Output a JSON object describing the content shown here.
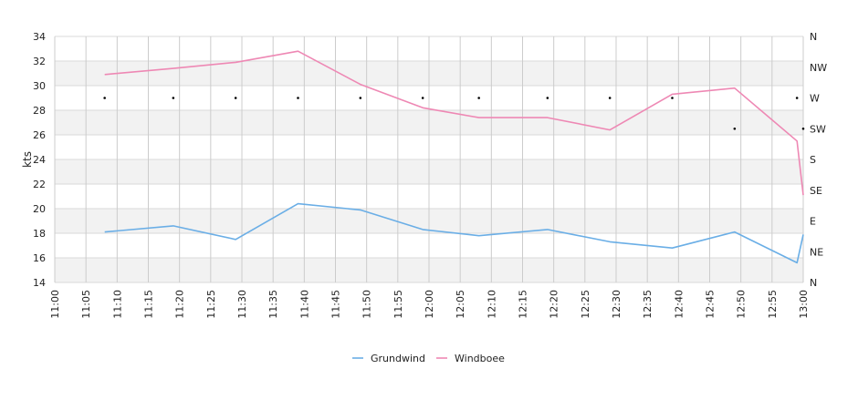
{
  "chart_data": {
    "type": "line",
    "ylabel": "kts",
    "ylim": [
      14,
      34
    ],
    "yticks": [
      "14",
      "16",
      "18",
      "20",
      "22",
      "24",
      "26",
      "28",
      "30",
      "32",
      "34"
    ],
    "x_range": [
      "11:00",
      "13:00"
    ],
    "xticks": [
      "11:00",
      "11:05",
      "11:10",
      "11:15",
      "11:20",
      "11:25",
      "11:30",
      "11:35",
      "11:40",
      "11:45",
      "11:50",
      "11:55",
      "12:00",
      "12:05",
      "12:10",
      "12:15",
      "12:20",
      "12:25",
      "12:30",
      "12:35",
      "12:40",
      "12:45",
      "12:50",
      "12:55",
      "13:00"
    ],
    "direction_axis": [
      "N",
      "NE",
      "E",
      "SE",
      "S",
      "SW",
      "W",
      "NW",
      "N"
    ],
    "grid": true,
    "legend_position": "bottom",
    "series": [
      {
        "name": "Grundwind",
        "color": "#6aaee6",
        "x": [
          "11:08",
          "11:19",
          "11:29",
          "11:39",
          "11:49",
          "11:59",
          "12:08",
          "12:19",
          "12:29",
          "12:39",
          "12:49",
          "12:59",
          "13:00"
        ],
        "values": [
          18.1,
          18.6,
          17.5,
          20.4,
          19.9,
          18.3,
          17.8,
          18.3,
          17.3,
          16.8,
          18.1,
          15.6,
          17.9
        ]
      },
      {
        "name": "Windboee",
        "color": "#ee88b4",
        "x": [
          "11:08",
          "11:19",
          "11:29",
          "11:39",
          "11:49",
          "11:59",
          "12:08",
          "12:19",
          "12:29",
          "12:39",
          "12:49",
          "12:59",
          "13:00"
        ],
        "values": [
          30.9,
          31.4,
          31.9,
          32.8,
          30.1,
          28.2,
          27.4,
          27.4,
          26.4,
          29.3,
          29.8,
          25.5,
          21.1
        ]
      }
    ],
    "direction_markers": {
      "x": [
        "11:08",
        "11:19",
        "11:29",
        "11:39",
        "11:49",
        "11:59",
        "12:08",
        "12:19",
        "12:29",
        "12:39",
        "12:49",
        "12:59",
        "13:00"
      ],
      "values": [
        "W",
        "W",
        "W",
        "W",
        "W",
        "W",
        "W",
        "W",
        "W",
        "W",
        "SW",
        "W",
        "SW"
      ]
    }
  }
}
